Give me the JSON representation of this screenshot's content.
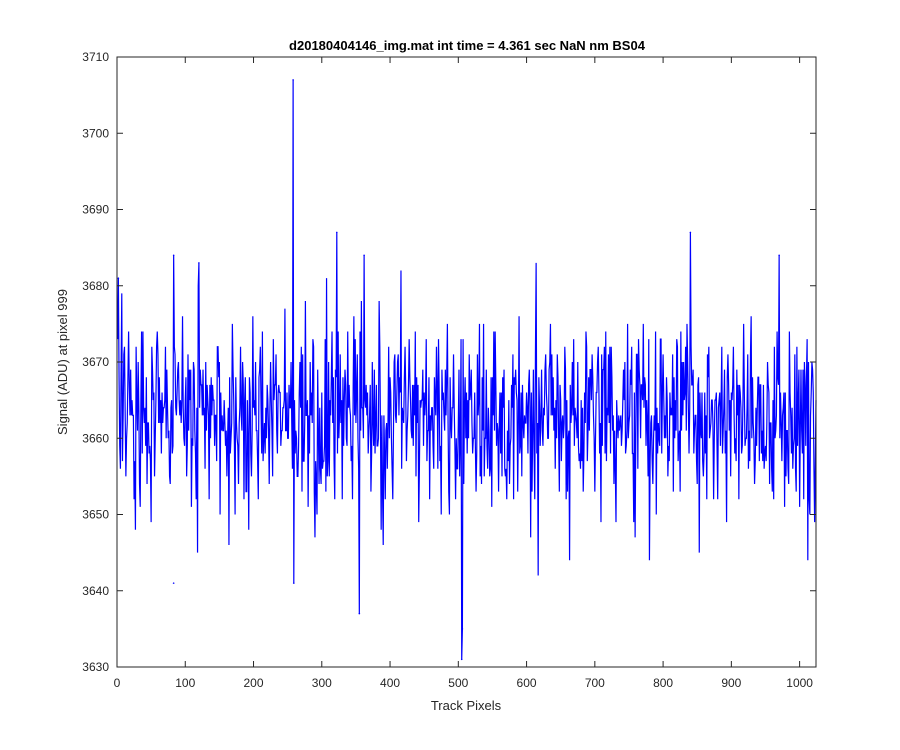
{
  "colors": {
    "series": "#0000ff",
    "axes": "#262626",
    "background": "#ffffff"
  },
  "chart_data": {
    "type": "line",
    "title": "d20180404146_img.mat int time = 4.361 sec  NaN nm BS04",
    "xlabel": "Track Pixels",
    "ylabel": "Signal (ADU) at pixel 999",
    "xlim": [
      0,
      1024
    ],
    "ylim": [
      3630,
      3710
    ],
    "xticks": [
      0,
      100,
      200,
      300,
      400,
      500,
      600,
      700,
      800,
      900,
      1000
    ],
    "yticks": [
      3630,
      3640,
      3650,
      3660,
      3670,
      3680,
      3690,
      3700,
      3710
    ],
    "grid": false,
    "legend": "none",
    "series": [
      {
        "sampling": "noise around ~3663 ADU, std ~6.5 ADU, one sample per pixel 1-1024",
        "mean": 3663,
        "std": 6.5,
        "n_points": 1024,
        "notable_points": [
          {
            "x": 2,
            "y": 3681
          },
          {
            "x": 83,
            "y": 3641
          },
          {
            "x": 83,
            "y": 3684
          },
          {
            "x": 120,
            "y": 3683
          },
          {
            "x": 258,
            "y": 3707
          },
          {
            "x": 259,
            "y": 3641
          },
          {
            "x": 322,
            "y": 3687
          },
          {
            "x": 355,
            "y": 3637
          },
          {
            "x": 362,
            "y": 3684
          },
          {
            "x": 505,
            "y": 3631
          },
          {
            "x": 506,
            "y": 3635
          },
          {
            "x": 840,
            "y": 3687
          },
          {
            "x": 970,
            "y": 3684
          }
        ]
      }
    ]
  }
}
